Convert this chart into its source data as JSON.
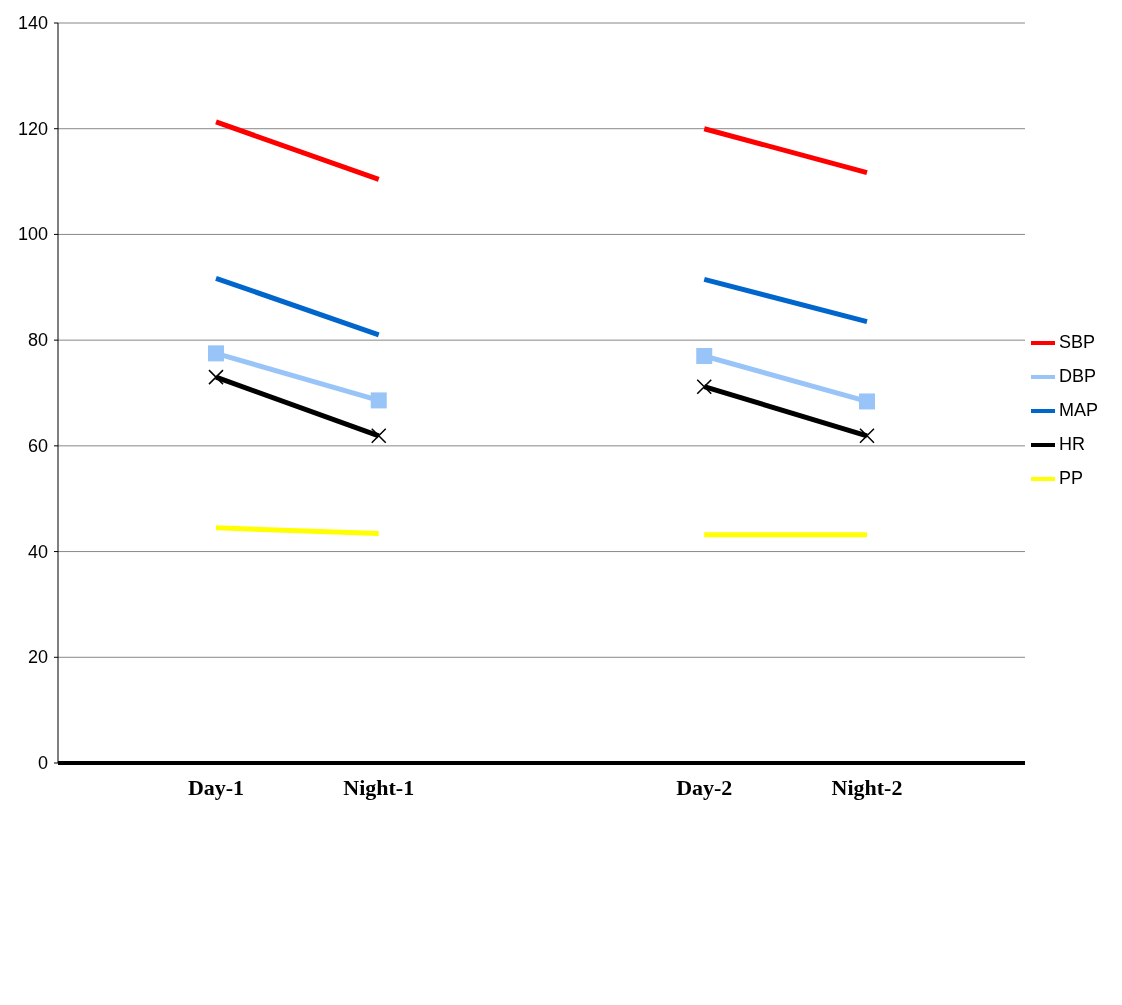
{
  "chart_data": {
    "type": "line",
    "categories": [
      "Day-1",
      "Night-1",
      null,
      "Day-2",
      "Night-2"
    ],
    "series": [
      {
        "name": "SBP",
        "color": "#ff0000",
        "marker": "none",
        "values": [
          121.3,
          110.4,
          null,
          120,
          111.7
        ]
      },
      {
        "name": "DBP",
        "color": "#99c4f8",
        "marker": "square",
        "values": [
          77.5,
          68.6,
          null,
          77,
          68.4
        ]
      },
      {
        "name": "MAP",
        "color": "#0066cc",
        "marker": "none",
        "values": [
          91.7,
          81,
          null,
          91.5,
          83.5
        ]
      },
      {
        "name": "HR",
        "color": "#000000",
        "marker": "cross",
        "values": [
          73,
          61.9,
          null,
          71.2,
          61.9
        ]
      },
      {
        "name": "PP",
        "color": "#ffff00",
        "marker": "none",
        "values": [
          44.5,
          43.4,
          null,
          43.2,
          43.2
        ]
      }
    ],
    "ylim": [
      0,
      140
    ],
    "yticks": [
      0,
      20,
      40,
      60,
      80,
      100,
      120,
      140
    ],
    "grid": "y",
    "legend": "right"
  }
}
